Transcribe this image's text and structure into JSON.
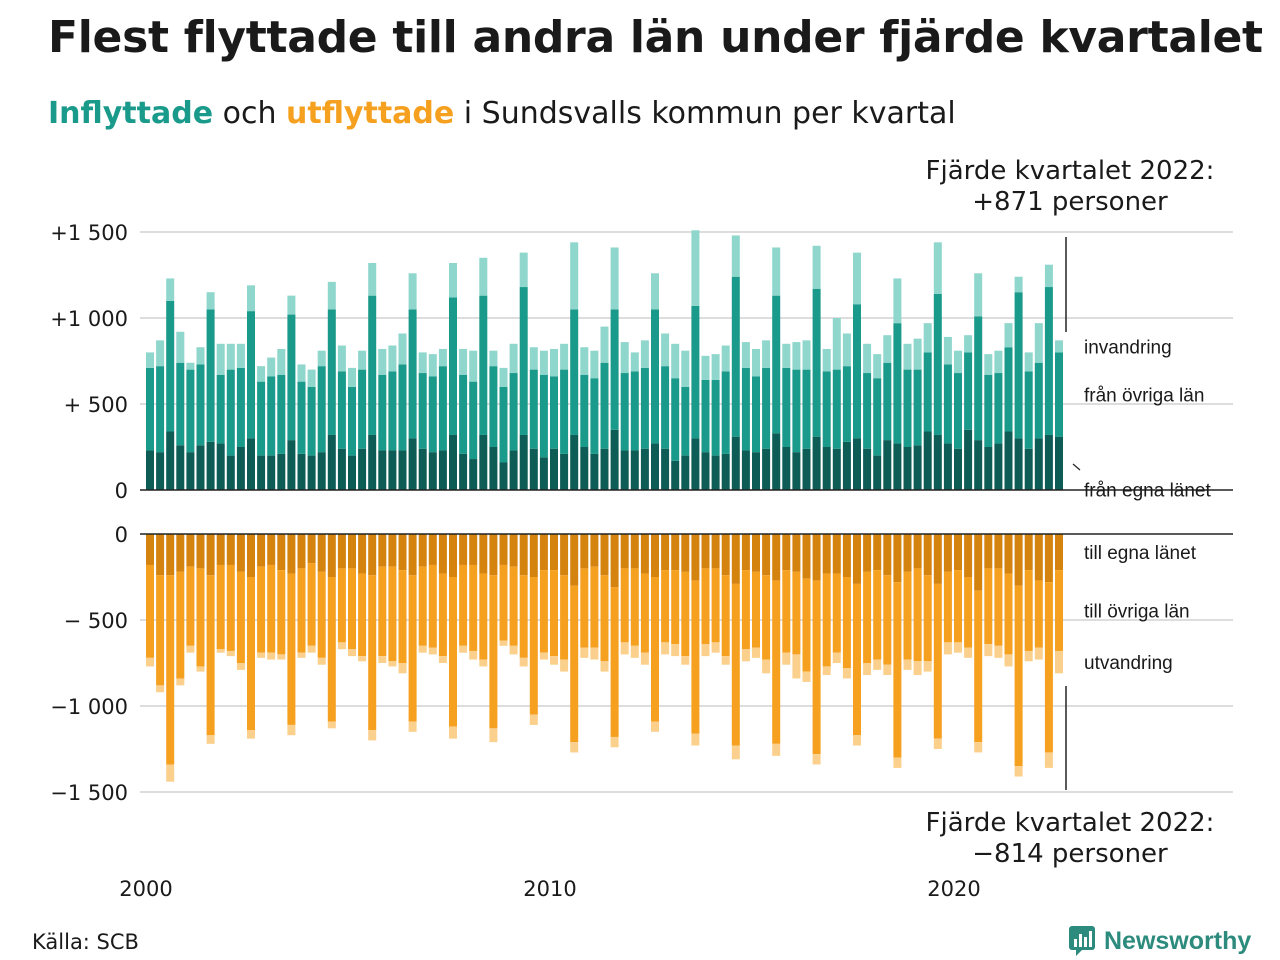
{
  "title": "Flest flyttade till andra län under fjärde kvartalet",
  "subtitle": {
    "part_in": "Inflyttade",
    "part_mid": " och ",
    "part_out": "utflyttade",
    "part_rest": " i Sundsvalls kommun per kvartal"
  },
  "callout_top": {
    "line1": "Fjärde kvartalet 2022:",
    "line2": "+871 personer"
  },
  "callout_bottom": {
    "line1": "Fjärde kvartalet 2022:",
    "line2": "−814 personer"
  },
  "source": "Källa: SCB",
  "logo": {
    "text": "Newsworthy",
    "icon": "newsworthy-chart-icon"
  },
  "colors": {
    "in_own": "#0d5c55",
    "in_other": "#1a9a8a",
    "in_immigration": "#8fd6cc",
    "out_own": "#d4830f",
    "out_other": "#f5a01f",
    "out_emigration": "#fbd08d",
    "grid": "#dddddd",
    "axis": "#222222"
  },
  "chart_data": {
    "type": "bar",
    "stacked": true,
    "x_start_year": 2000,
    "x_start_quarter": 1,
    "x_tick_labels": [
      "2000",
      "2010",
      "2020"
    ],
    "inflow_ticks": [
      "+1 500",
      "+1 000",
      "+  500",
      "0"
    ],
    "outflow_ticks": [
      "0",
      "−  500",
      "−1 000",
      "−1 500"
    ],
    "ylim_in": [
      0,
      1500
    ],
    "ylim_out": [
      -1500,
      0
    ],
    "grid": true,
    "inflow_labels": [
      "invandring",
      "från övriga län",
      "från egna länet"
    ],
    "outflow_labels": [
      "till egna länet",
      "till övriga län",
      "utvandring"
    ],
    "inflow_series": [
      {
        "name": "från egna länet",
        "values": [
          230,
          220,
          340,
          260,
          220,
          260,
          280,
          270,
          200,
          250,
          300,
          200,
          200,
          210,
          290,
          210,
          200,
          220,
          320,
          240,
          200,
          240,
          320,
          230,
          230,
          230,
          300,
          240,
          220,
          230,
          320,
          210,
          180,
          320,
          250,
          160,
          230,
          320,
          240,
          190,
          240,
          210,
          320,
          250,
          210,
          240,
          350,
          230,
          230,
          240,
          270,
          240,
          170,
          200,
          300,
          220,
          200,
          210,
          310,
          230,
          220,
          240,
          330,
          250,
          220,
          240,
          310,
          250,
          240,
          280,
          300,
          240,
          200,
          290,
          270,
          250,
          260,
          340,
          320,
          270,
          240,
          350,
          290,
          250,
          270,
          340,
          300,
          240,
          300,
          320,
          310
        ]
      },
      {
        "name": "från övriga län",
        "values": [
          480,
          500,
          760,
          480,
          480,
          470,
          770,
          400,
          500,
          460,
          740,
          430,
          460,
          460,
          730,
          420,
          400,
          500,
          730,
          450,
          400,
          460,
          810,
          440,
          460,
          500,
          750,
          440,
          440,
          490,
          800,
          460,
          450,
          810,
          470,
          440,
          450,
          860,
          460,
          480,
          420,
          490,
          730,
          420,
          440,
          500,
          700,
          450,
          460,
          470,
          780,
          480,
          480,
          400,
          770,
          420,
          440,
          480,
          930,
          480,
          440,
          470,
          800,
          460,
          480,
          460,
          860,
          440,
          460,
          440,
          780,
          440,
          450,
          450,
          700,
          450,
          440,
          460,
          820,
          460,
          440,
          450,
          720,
          420,
          410,
          490,
          850,
          450,
          440,
          860,
          490
        ]
      },
      {
        "name": "invandring",
        "values": [
          90,
          150,
          130,
          180,
          40,
          100,
          100,
          180,
          150,
          140,
          150,
          90,
          110,
          150,
          110,
          100,
          100,
          90,
          160,
          150,
          110,
          110,
          190,
          150,
          150,
          180,
          210,
          120,
          130,
          100,
          200,
          150,
          180,
          220,
          90,
          110,
          170,
          200,
          130,
          140,
          160,
          150,
          390,
          160,
          160,
          210,
          360,
          180,
          110,
          160,
          210,
          190,
          200,
          210,
          440,
          140,
          150,
          150,
          240,
          150,
          160,
          160,
          280,
          140,
          160,
          170,
          250,
          130,
          300,
          190,
          300,
          170,
          140,
          160,
          260,
          150,
          180,
          170,
          300,
          160,
          130,
          100,
          250,
          120,
          130,
          140,
          90,
          110,
          230,
          130,
          70
        ]
      }
    ],
    "outflow_series": [
      {
        "name": "till egna länet",
        "values": [
          -180,
          -240,
          -240,
          -220,
          -190,
          -200,
          -240,
          -180,
          -180,
          -220,
          -250,
          -190,
          -180,
          -210,
          -230,
          -200,
          -170,
          -220,
          -250,
          -200,
          -200,
          -230,
          -240,
          -190,
          -190,
          -210,
          -240,
          -190,
          -180,
          -230,
          -250,
          -180,
          -180,
          -230,
          -240,
          -180,
          -190,
          -240,
          -250,
          -210,
          -210,
          -240,
          -300,
          -200,
          -190,
          -240,
          -310,
          -200,
          -200,
          -230,
          -250,
          -210,
          -210,
          -220,
          -270,
          -200,
          -200,
          -240,
          -290,
          -210,
          -220,
          -240,
          -270,
          -210,
          -220,
          -260,
          -270,
          -230,
          -230,
          -250,
          -290,
          -220,
          -210,
          -240,
          -280,
          -220,
          -200,
          -240,
          -290,
          -220,
          -210,
          -250,
          -330,
          -200,
          -200,
          -230,
          -300,
          -210,
          -270,
          -280,
          -210
        ]
      },
      {
        "name": "till övriga län",
        "values": [
          -540,
          -640,
          -1100,
          -620,
          -460,
          -570,
          -930,
          -490,
          -500,
          -530,
          -890,
          -500,
          -510,
          -490,
          -880,
          -490,
          -480,
          -500,
          -840,
          -430,
          -470,
          -480,
          -900,
          -520,
          -550,
          -540,
          -850,
          -460,
          -480,
          -480,
          -870,
          -470,
          -500,
          -500,
          -890,
          -440,
          -460,
          -480,
          -800,
          -480,
          -500,
          -490,
          -910,
          -460,
          -470,
          -500,
          -870,
          -430,
          -450,
          -460,
          -840,
          -420,
          -430,
          -490,
          -890,
          -440,
          -430,
          -470,
          -940,
          -460,
          -440,
          -490,
          -950,
          -480,
          -480,
          -540,
          -1010,
          -540,
          -460,
          -530,
          -880,
          -530,
          -520,
          -520,
          -1020,
          -510,
          -540,
          -500,
          -900,
          -410,
          -420,
          -410,
          -880,
          -440,
          -450,
          -470,
          -1050,
          -470,
          -390,
          -990,
          -470
        ]
      },
      {
        "name": "utvandring",
        "values": [
          -50,
          -40,
          -100,
          -40,
          -40,
          -30,
          -50,
          -20,
          -30,
          -40,
          -50,
          -30,
          -40,
          -30,
          -60,
          -30,
          -40,
          -40,
          -40,
          -40,
          -40,
          -30,
          -60,
          -40,
          -30,
          -60,
          -60,
          -40,
          -40,
          -40,
          -70,
          -40,
          -50,
          -40,
          -80,
          -30,
          -50,
          -50,
          -60,
          -40,
          -50,
          -70,
          -60,
          -60,
          -70,
          -60,
          -60,
          -70,
          -70,
          -70,
          -60,
          -70,
          -70,
          -50,
          -70,
          -70,
          -60,
          -50,
          -80,
          -70,
          -60,
          -80,
          -70,
          -70,
          -140,
          -60,
          -60,
          -50,
          -60,
          -60,
          -60,
          -70,
          -60,
          -60,
          -60,
          -60,
          -80,
          -60,
          -60,
          -70,
          -60,
          -60,
          -60,
          -70,
          -70,
          -70,
          -60,
          -60,
          -70,
          -90,
          -130
        ]
      }
    ]
  }
}
